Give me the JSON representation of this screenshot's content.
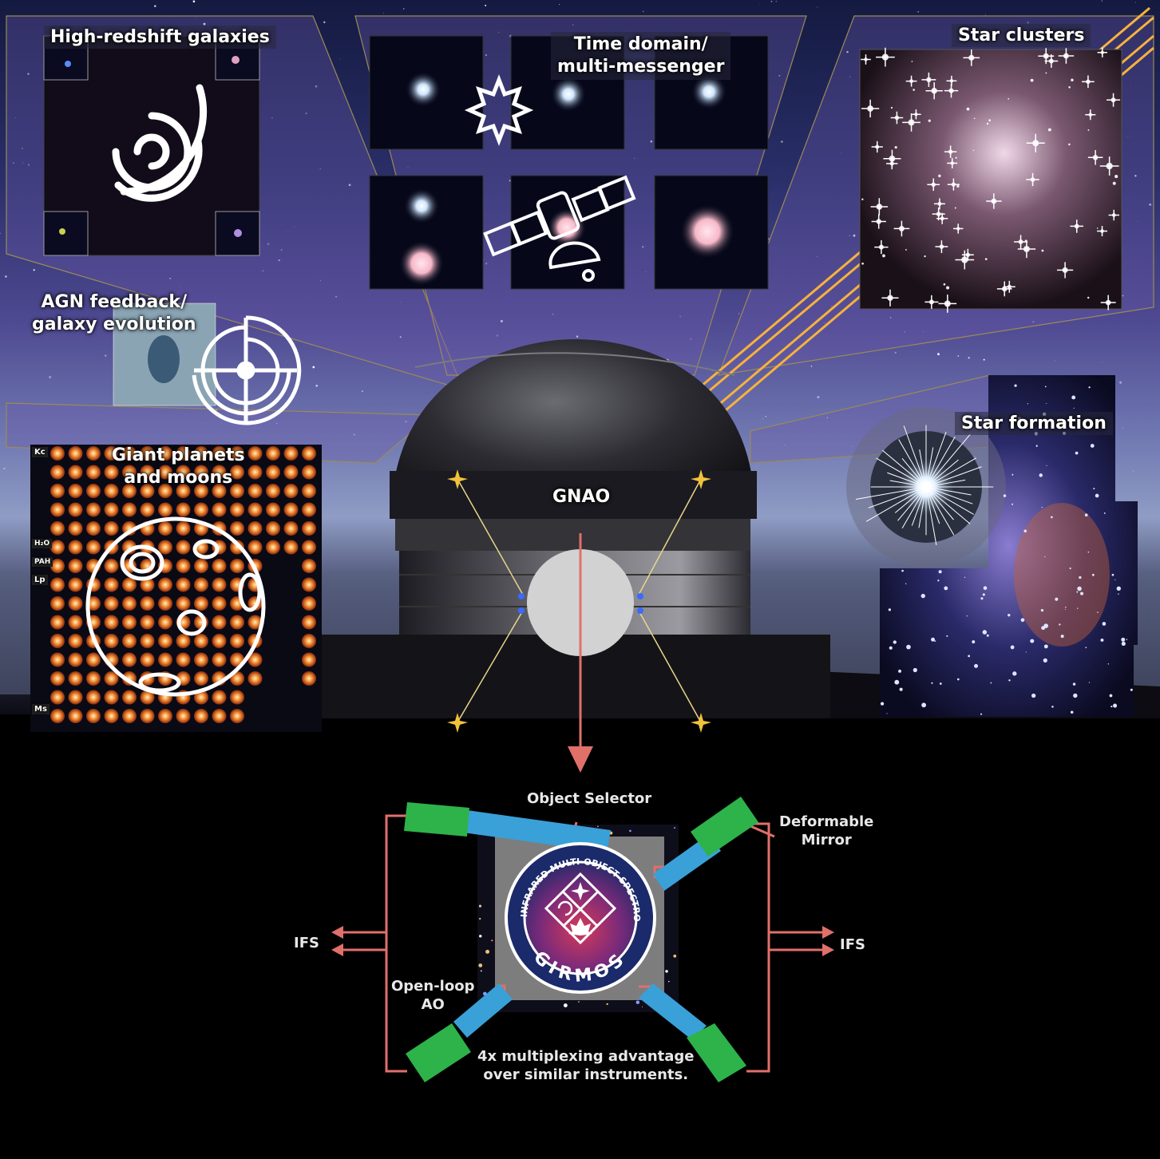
{
  "colors": {
    "sky_top": "#1a1f4a",
    "sky_purple": "#5b4a9a",
    "sky_horizon": "#9aa6c8",
    "ground": "#000000",
    "arrow_red": "#e0706a",
    "laser": "#f6b23c",
    "green_box": "#2db34a",
    "blue_bar": "#3aa0d8",
    "panel_gray": "#7d7d7d",
    "star_gold": "#f2c23a"
  },
  "science_cases": {
    "high_redshift": "High-redshift galaxies",
    "time_domain": "Time domain/\nmulti-messenger",
    "star_clusters": "Star clusters",
    "agn": "AGN feedback/\ngalaxy evolution",
    "giant_planets": "Giant planets\nand moons",
    "star_formation": "Star formation"
  },
  "telescope": {
    "gnao_label": "GNAO"
  },
  "planet_grid_labels": [
    "Kc",
    "H₂O",
    "PAH",
    "Lp",
    "Ms"
  ],
  "instrument": {
    "object_selector": "Object Selector",
    "deformable_mirror": "Deformable\nMirror",
    "ifs_left": "IFS",
    "ifs_right": "IFS",
    "open_loop": "Open-loop\nAO",
    "multiplexing": "4x multiplexing advantage\nover similar instruments.",
    "logo_ring_text": "GEMINI INFRARED MULTI-OBJECT SPECTROGRAPH",
    "logo_name": "GIRMOS"
  }
}
